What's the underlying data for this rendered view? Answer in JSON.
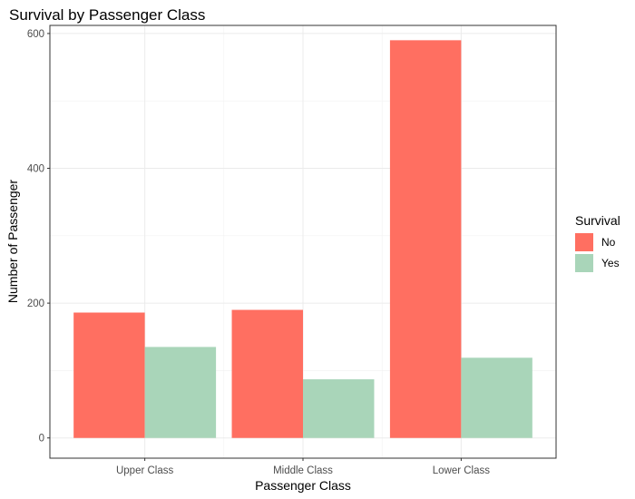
{
  "chart_data": {
    "type": "bar",
    "title": "Survival by Passenger Class",
    "xlabel": "Passenger Class",
    "ylabel": "Number of Passenger",
    "categories": [
      "Upper Class",
      "Middle Class",
      "Lower Class"
    ],
    "series": [
      {
        "name": "No",
        "color": "#ff6f61",
        "values": [
          186,
          190,
          590
        ]
      },
      {
        "name": "Yes",
        "color": "#a9d5b9",
        "values": [
          135,
          87,
          119
        ]
      }
    ],
    "ylim": [
      -30,
      612
    ],
    "yticks": [
      0,
      200,
      400,
      600
    ],
    "grid": true,
    "legend": {
      "title": "Survival",
      "position": "right"
    }
  }
}
